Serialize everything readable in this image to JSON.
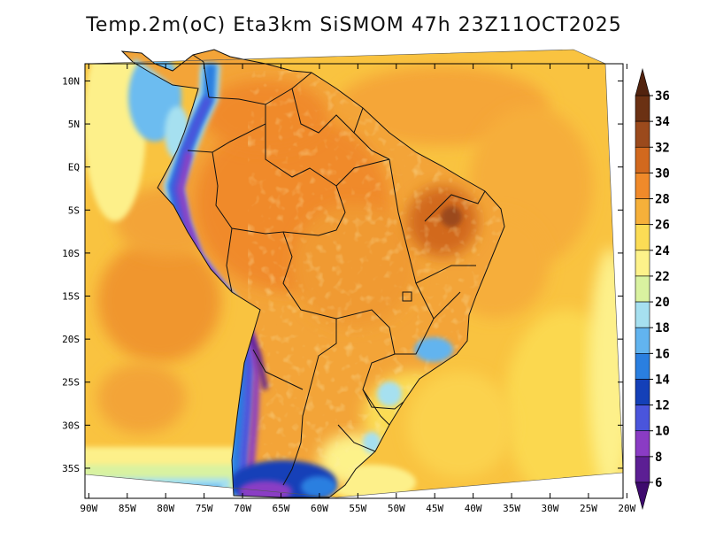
{
  "title": "Temp.2m(oC) Eta3km SiSMOM 47h 23Z11OCT2025",
  "lat_axis": {
    "labels": [
      "10N",
      "5N",
      "EQ",
      "5S",
      "10S",
      "15S",
      "20S",
      "25S",
      "30S",
      "35S"
    ],
    "values": [
      10,
      5,
      0,
      -5,
      -10,
      -15,
      -20,
      -25,
      -30,
      -35
    ],
    "range": [
      12,
      -38.5
    ]
  },
  "lon_axis": {
    "labels": [
      "90W",
      "85W",
      "80W",
      "75W",
      "70W",
      "65W",
      "60W",
      "55W",
      "50W",
      "45W",
      "40W",
      "35W",
      "30W",
      "25W",
      "20W"
    ],
    "values": [
      -90,
      -85,
      -80,
      -75,
      -70,
      -65,
      -60,
      -55,
      -50,
      -45,
      -40,
      -35,
      -30,
      -25,
      -20
    ],
    "range": [
      -90.5,
      -20.5
    ]
  },
  "colorbar": {
    "labels": [
      "36",
      "34",
      "32",
      "30",
      "28",
      "26",
      "24",
      "22",
      "20",
      "18",
      "16",
      "14",
      "12",
      "10",
      "8",
      "6"
    ],
    "bins": [
      {
        "min": 34,
        "max": 36,
        "color": "#6b3113"
      },
      {
        "min": 32,
        "max": 34,
        "color": "#9b4a1c"
      },
      {
        "min": 30,
        "max": 32,
        "color": "#d2691e"
      },
      {
        "min": 28,
        "max": 30,
        "color": "#f08a2a"
      },
      {
        "min": 26,
        "max": 28,
        "color": "#f6b03a"
      },
      {
        "min": 24,
        "max": 26,
        "color": "#fbdc55"
      },
      {
        "min": 22,
        "max": 24,
        "color": "#fdf28a"
      },
      {
        "min": 20,
        "max": 22,
        "color": "#d9f2a0"
      },
      {
        "min": 18,
        "max": 20,
        "color": "#a6e0f0"
      },
      {
        "min": 16,
        "max": 18,
        "color": "#62b4ef"
      },
      {
        "min": 14,
        "max": 16,
        "color": "#2a7fe0"
      },
      {
        "min": 12,
        "max": 14,
        "color": "#1440b8"
      },
      {
        "min": 10,
        "max": 12,
        "color": "#4a55dc"
      },
      {
        "min": 8,
        "max": 10,
        "color": "#8a3cc4"
      },
      {
        "min": 6,
        "max": 8,
        "color": "#5c1f94"
      }
    ],
    "over_color": "#52230e",
    "under_color": "#3e0a6e"
  },
  "colors": {
    "ocean": "#f9c340",
    "land_base": "#f3a438",
    "border": "#111111"
  }
}
